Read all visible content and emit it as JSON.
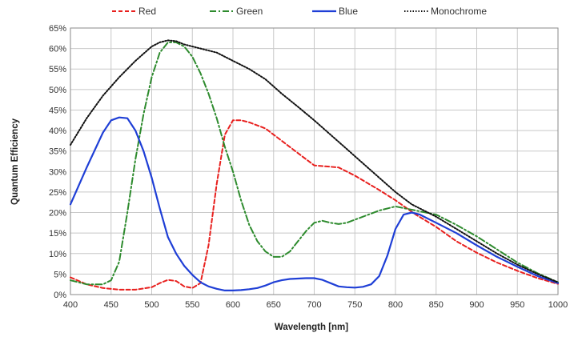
{
  "chart_data": {
    "type": "line",
    "title": "",
    "xlabel": "Wavelength [nm]",
    "ylabel": "Quantum Efficiency",
    "xlim": [
      400,
      1000
    ],
    "ylim": [
      0,
      65
    ],
    "x_ticks": [
      400,
      450,
      500,
      550,
      600,
      650,
      700,
      750,
      800,
      850,
      900,
      950,
      1000
    ],
    "y_ticks": [
      0,
      5,
      10,
      15,
      20,
      25,
      30,
      35,
      40,
      45,
      50,
      55,
      60,
      65
    ],
    "x_tick_labels": [
      "400",
      "450",
      "500",
      "550",
      "600",
      "650",
      "700",
      "750",
      "800",
      "850",
      "900",
      "950",
      "1000"
    ],
    "y_tick_labels": [
      "0%",
      "5%",
      "10%",
      "15%",
      "20%",
      "25%",
      "30%",
      "35%",
      "40%",
      "45%",
      "50%",
      "55%",
      "60%",
      "65%"
    ],
    "grid": true,
    "legend_position": "top",
    "series": [
      {
        "name": "Red",
        "color": "#e8201e",
        "dash": "dashed",
        "x": [
          400,
          420,
          440,
          460,
          480,
          500,
          510,
          520,
          530,
          540,
          550,
          560,
          570,
          580,
          590,
          600,
          610,
          620,
          640,
          660,
          680,
          700,
          730,
          750,
          780,
          800,
          825,
          850,
          875,
          900,
          925,
          950,
          975,
          1000
        ],
        "y": [
          4.2,
          2.5,
          1.6,
          1.2,
          1.2,
          1.8,
          2.8,
          3.6,
          3.3,
          2.0,
          1.6,
          2.8,
          12,
          27,
          39,
          42.5,
          42.5,
          42,
          40.5,
          37.5,
          34.5,
          31.5,
          31,
          29,
          25.5,
          23,
          19.5,
          16.5,
          13,
          10.2,
          7.8,
          5.8,
          4,
          2.6
        ]
      },
      {
        "name": "Green",
        "color": "#2e8b2e",
        "dash": "dashdot",
        "x": [
          400,
          420,
          440,
          450,
          460,
          470,
          480,
          490,
          500,
          510,
          520,
          530,
          540,
          550,
          560,
          570,
          580,
          590,
          600,
          610,
          620,
          630,
          640,
          650,
          660,
          670,
          680,
          690,
          700,
          710,
          720,
          730,
          740,
          760,
          780,
          800,
          825,
          850,
          875,
          900,
          925,
          950,
          975,
          1000
        ],
        "y": [
          3.5,
          2.5,
          2.5,
          3.5,
          8,
          20,
          33,
          44,
          53,
          59,
          61.5,
          61.5,
          60.5,
          58,
          54,
          49,
          43,
          36,
          30,
          23,
          17,
          13,
          10.5,
          9.2,
          9.2,
          10.5,
          13,
          15.5,
          17.5,
          18,
          17.5,
          17.2,
          17.5,
          19,
          20.5,
          21.5,
          20.5,
          19.5,
          17,
          14.2,
          11,
          7.8,
          5.2,
          3
        ]
      },
      {
        "name": "Blue",
        "color": "#1f3fd6",
        "dash": "solid",
        "x": [
          400,
          420,
          440,
          450,
          460,
          470,
          480,
          490,
          500,
          510,
          520,
          530,
          540,
          550,
          560,
          570,
          580,
          590,
          600,
          610,
          620,
          630,
          640,
          650,
          660,
          670,
          680,
          690,
          700,
          710,
          720,
          730,
          740,
          750,
          760,
          770,
          780,
          790,
          800,
          810,
          820,
          830,
          850,
          875,
          900,
          925,
          950,
          975,
          1000
        ],
        "y": [
          22,
          31,
          39.5,
          42.5,
          43.2,
          43,
          40,
          35,
          28.5,
          21,
          14,
          10,
          7,
          4.8,
          3,
          2,
          1.4,
          1,
          1,
          1.1,
          1.3,
          1.6,
          2.2,
          3,
          3.5,
          3.8,
          3.9,
          4,
          4,
          3.6,
          2.8,
          2,
          1.8,
          1.7,
          1.9,
          2.5,
          4.5,
          9.5,
          16,
          19.5,
          20,
          19.5,
          17.5,
          15,
          12,
          9.2,
          6.8,
          4.5,
          2.8
        ]
      },
      {
        "name": "Monochrome",
        "color": "#111111",
        "dash": "dotted",
        "x": [
          400,
          420,
          440,
          460,
          480,
          500,
          510,
          520,
          530,
          540,
          560,
          580,
          600,
          620,
          640,
          660,
          680,
          700,
          720,
          740,
          760,
          780,
          800,
          820,
          850,
          875,
          900,
          925,
          950,
          975,
          1000
        ],
        "y": [
          36.5,
          43,
          48.5,
          53,
          57,
          60.5,
          61.5,
          62,
          61.8,
          61,
          60,
          59,
          57,
          55,
          52.5,
          49,
          45.8,
          42.5,
          39,
          35.5,
          32,
          28.5,
          25,
          22,
          19,
          16,
          13,
          10,
          7.3,
          5,
          3
        ]
      }
    ]
  }
}
